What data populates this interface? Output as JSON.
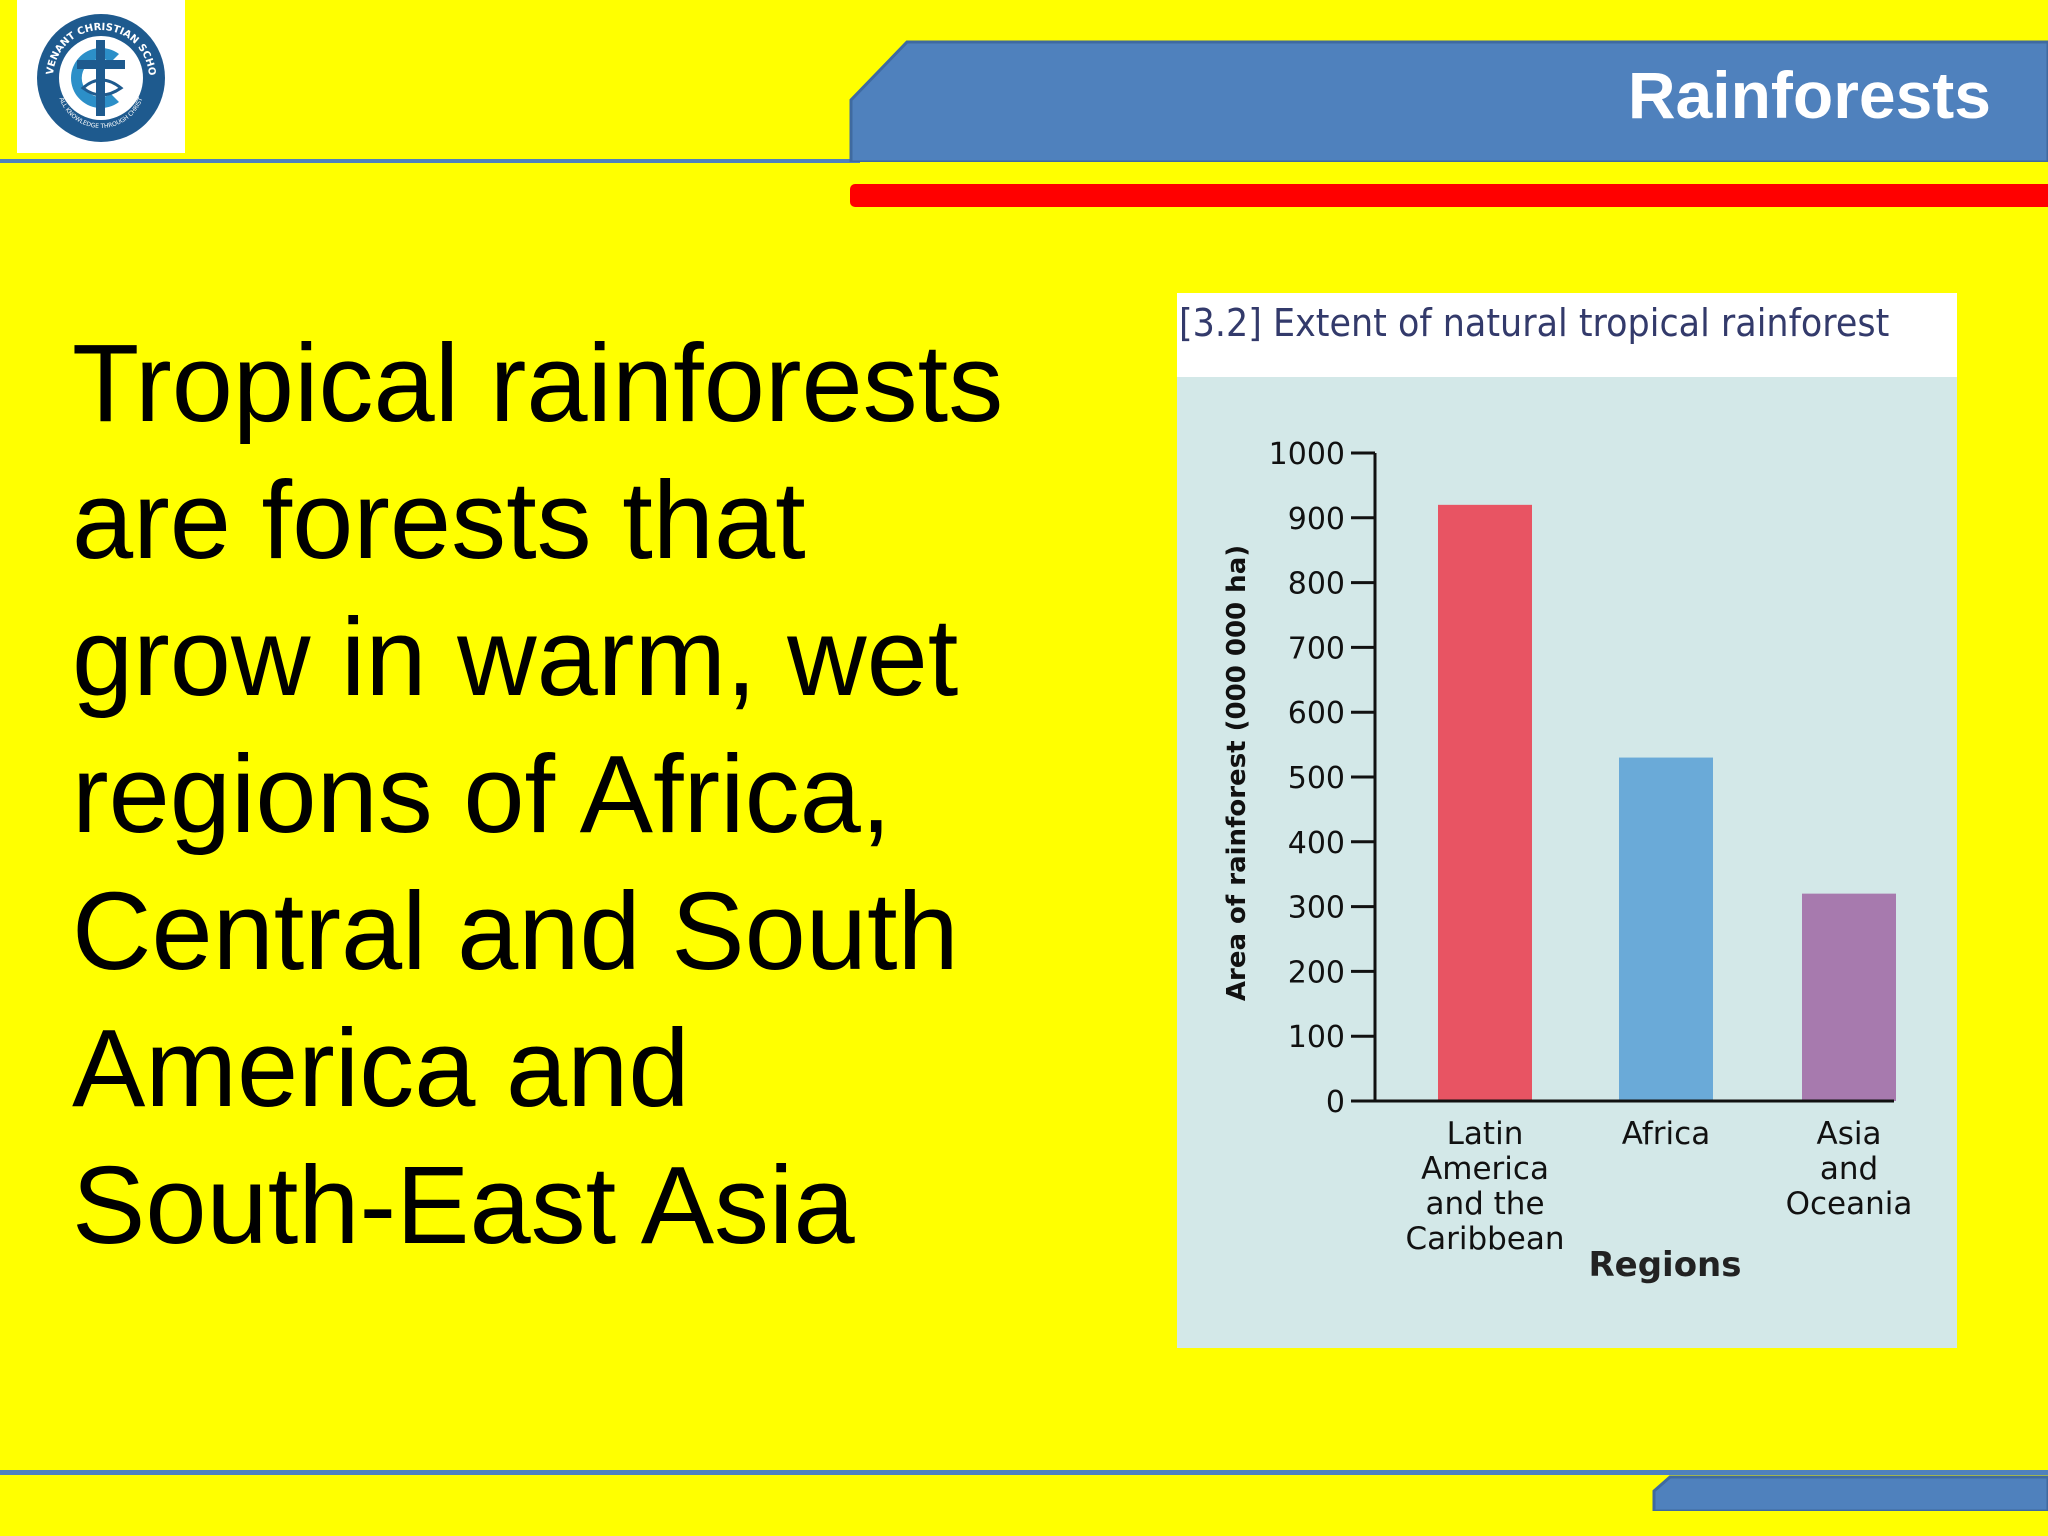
{
  "header": {
    "title": "Rainforests",
    "logo": {
      "name": "COVENANT CHRISTIAN SCHOOL",
      "motto": "ALL KNOWLEDGE THROUGH CHRIST"
    }
  },
  "body": {
    "lines": [
      "Tropical rainforests",
      "are forests that",
      "grow in warm, wet",
      "regions of Africa,",
      "Central and South",
      "America and",
      "South-East Asia"
    ]
  },
  "figure": {
    "caption": "[3.2] Extent of natural tropical rainforest"
  },
  "colors": {
    "background": "#ffff00",
    "header_blue": "#4f81bd",
    "accent_red": "#ff0000",
    "chart_bg": "#d3e8e8"
  },
  "chart_data": {
    "type": "bar",
    "title": "",
    "categories": [
      [
        "Latin",
        "America",
        "and the",
        "Caribbean"
      ],
      [
        "Africa"
      ],
      [
        "Asia",
        "and",
        "Oceania"
      ]
    ],
    "values": [
      920,
      530,
      320
    ],
    "bar_colors": [
      "#e85463",
      "#6aaad8",
      "#a77aae"
    ],
    "xlabel": "Regions",
    "ylabel": "Area of rainforest (000 000 ha)",
    "ylim": [
      0,
      1000
    ],
    "yticks": [
      0,
      100,
      200,
      300,
      400,
      500,
      600,
      700,
      800,
      900,
      1000
    ],
    "grid": false
  }
}
